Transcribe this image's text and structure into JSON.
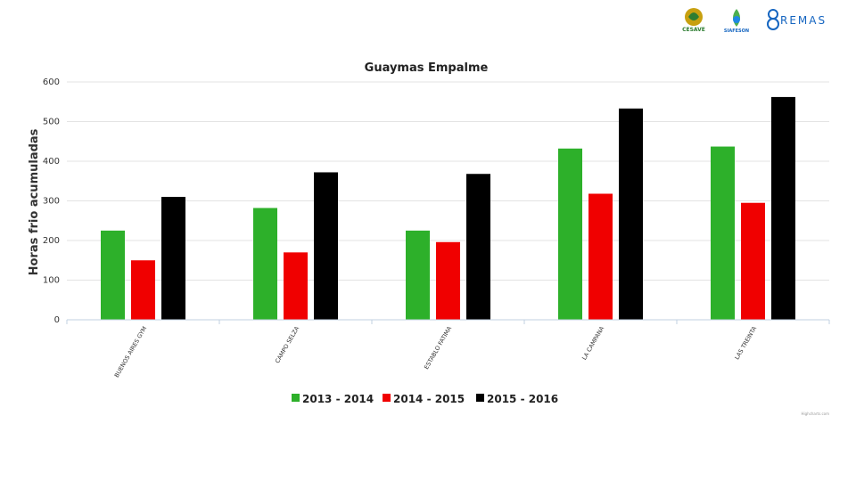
{
  "logos": [
    {
      "name": "cesave-logo",
      "text": "CESAVE"
    },
    {
      "name": "siafeson-logo",
      "text": "SIAFESON"
    },
    {
      "name": "remas-logo",
      "text": "REMAS"
    }
  ],
  "credit": "Highcharts.com",
  "chart_data": {
    "type": "bar",
    "title": "Guaymas Empalme",
    "ylabel": "Horas frio acumuladas",
    "xlabel": "",
    "ylim": [
      0,
      600
    ],
    "yticks": [
      0,
      100,
      200,
      300,
      400,
      500,
      600
    ],
    "grid": true,
    "legend_position": "bottom",
    "categories": [
      "BUENOS AIRES GYM",
      "CAMPO SELZA",
      "ESTABLO FATIMA",
      "LA CAMPANA",
      "LAS TREINTA"
    ],
    "series": [
      {
        "name": "2013 - 2014",
        "color": "#2db02a",
        "values": [
          225,
          282,
          225,
          432,
          437
        ]
      },
      {
        "name": "2014 - 2015",
        "color": "#f00000",
        "values": [
          150,
          170,
          196,
          318,
          295
        ]
      },
      {
        "name": "2015 - 2016",
        "color": "#000000",
        "values": [
          310,
          372,
          368,
          533,
          562
        ]
      }
    ]
  }
}
